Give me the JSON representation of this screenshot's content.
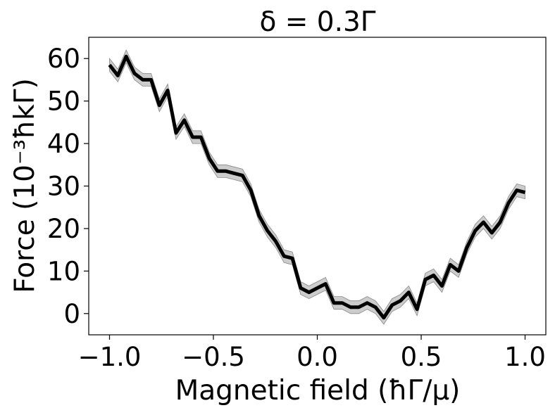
{
  "chart_data": {
    "type": "line",
    "title": "δ = 0.3Γ",
    "xlabel": "Magnetic field (ħΓ/μ)",
    "ylabel": "Force (10⁻³ħkΓ)",
    "xlim": [
      -1.1,
      1.1
    ],
    "ylim": [
      -5,
      65
    ],
    "xticks": [
      -1.0,
      -0.5,
      0.0,
      0.5,
      1.0
    ],
    "xtick_labels": [
      "−1.0",
      "−0.5",
      "0.0",
      "0.5",
      "1.0"
    ],
    "yticks": [
      0,
      10,
      20,
      30,
      40,
      50,
      60
    ],
    "ytick_labels": [
      "0",
      "10",
      "20",
      "30",
      "40",
      "50",
      "60"
    ],
    "grid": false,
    "colors": {
      "line": "#000000",
      "band": "#aaaaaa"
    },
    "series": [
      {
        "x": [
          -1.0,
          -0.96,
          -0.92,
          -0.88,
          -0.84,
          -0.8,
          -0.76,
          -0.72,
          -0.68,
          -0.64,
          -0.6,
          -0.56,
          -0.52,
          -0.48,
          -0.44,
          -0.4,
          -0.36,
          -0.32,
          -0.28,
          -0.24,
          -0.2,
          -0.16,
          -0.12,
          -0.08,
          -0.04,
          0.0,
          0.04,
          0.08,
          0.12,
          0.16,
          0.2,
          0.24,
          0.28,
          0.32,
          0.36,
          0.4,
          0.44,
          0.48,
          0.52,
          0.56,
          0.6,
          0.64,
          0.68,
          0.72,
          0.76,
          0.8,
          0.84,
          0.88,
          0.92,
          0.96,
          1.0
        ],
        "y": [
          58.5,
          56.0,
          60.5,
          56.5,
          55.0,
          55.0,
          49.0,
          52.5,
          42.5,
          45.5,
          41.5,
          41.5,
          36.5,
          33.5,
          33.5,
          33.0,
          32.5,
          29.0,
          23.0,
          19.5,
          17.0,
          13.5,
          13.0,
          6.0,
          5.0,
          6.0,
          7.0,
          2.5,
          2.5,
          1.5,
          1.5,
          2.5,
          1.5,
          -1.0,
          2.0,
          3.0,
          5.0,
          1.0,
          8.0,
          9.0,
          6.5,
          11.5,
          10.0,
          15.5,
          19.5,
          21.5,
          19.0,
          21.5,
          26.0,
          29.0,
          28.5
        ],
        "error": 1.5
      }
    ]
  }
}
